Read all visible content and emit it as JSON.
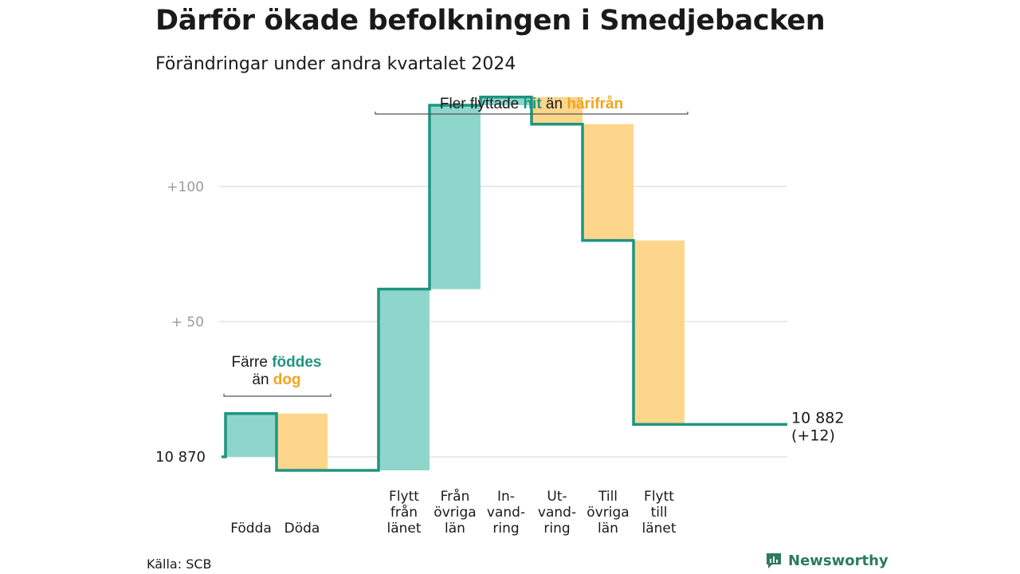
{
  "title": "Därför ökade befolkningen i Smedjebacken",
  "subtitle": "Förändringar under andra kvartalet 2024",
  "source": "Källa: SCB",
  "brand": {
    "name": "Newsworthy",
    "icon": "newsworthy-logo-icon"
  },
  "colors": {
    "increase": "#8ed6cc",
    "decrease": "#fdd58b",
    "line": "#1e9580",
    "grid": "#e2e2e2",
    "hit": "#1e9580",
    "harifran": "#f0a51e"
  },
  "chart_data": {
    "type": "waterfall",
    "baseline": 10870,
    "y_ticks": [
      {
        "value": 10870,
        "label": "10  870"
      },
      {
        "value": 10920,
        "label": "+  50"
      },
      {
        "value": 10970,
        "label": "+100"
      }
    ],
    "ylim": [
      10865,
      11005
    ],
    "groups": [
      {
        "steps": [
          {
            "key": "fodda",
            "label_lines": [
              "Födda"
            ],
            "change": 16
          },
          {
            "key": "doda",
            "label_lines": [
              "Döda"
            ],
            "change": -21
          }
        ],
        "annotation": {
          "parts": [
            {
              "line": 0,
              "text": "Färre ",
              "hl": false
            },
            {
              "line": 0,
              "text": "föddes",
              "hl": "hit"
            },
            {
              "line": 1,
              "text": "än ",
              "hl": false
            },
            {
              "line": 1,
              "text": "dog",
              "hl": "harifran"
            }
          ]
        }
      },
      {
        "steps": [
          {
            "key": "flytt-fran-lanet",
            "label_lines": [
              "Flytt",
              "från",
              "länet"
            ],
            "change": 67
          },
          {
            "key": "fran-ovriga-lan",
            "label_lines": [
              "Från",
              "övriga",
              "län"
            ],
            "change": 68
          },
          {
            "key": "invandring",
            "label_lines": [
              "In-",
              "vand-",
              "ring"
            ],
            "change": 3
          },
          {
            "key": "utvandring",
            "label_lines": [
              "Ut-",
              "vand-",
              "ring"
            ],
            "change": -10
          },
          {
            "key": "till-ovriga-lan",
            "label_lines": [
              "Till",
              "övriga",
              "län"
            ],
            "change": -43
          },
          {
            "key": "flytt-till-lanet",
            "label_lines": [
              "Flytt",
              "till",
              "länet"
            ],
            "change": -68
          }
        ],
        "annotation": {
          "parts": [
            {
              "line": 0,
              "text": "Fler flyttade ",
              "hl": false
            },
            {
              "line": 0,
              "text": "hit",
              "hl": "hit"
            },
            {
              "line": 0,
              "text": " än ",
              "hl": false
            },
            {
              "line": 0,
              "text": "härifrån",
              "hl": "harifran"
            }
          ]
        }
      }
    ],
    "end_value": 10882,
    "end_label_lines": [
      "10 882",
      "(+12)"
    ]
  }
}
